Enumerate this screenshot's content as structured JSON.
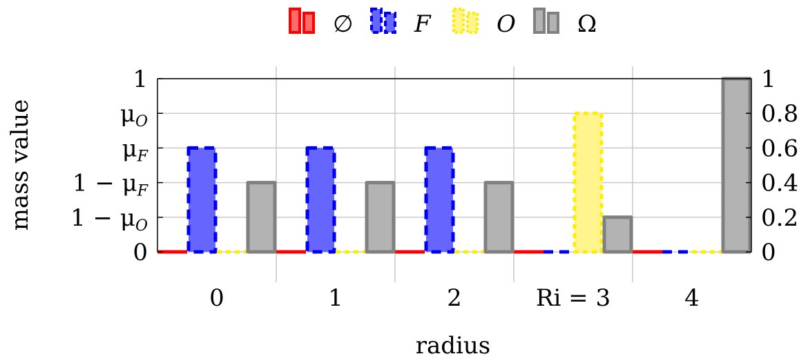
{
  "chart_data": {
    "type": "bar",
    "categories": [
      "0",
      "1",
      "2",
      "Ri = 3",
      "4"
    ],
    "xlabel": "radius",
    "ylabel": "mass value",
    "ylim": [
      0,
      1
    ],
    "grid": true,
    "legend_position": "top",
    "left_ticks": [
      {
        "value": 0,
        "label": "0"
      },
      {
        "value": 0.2,
        "label": "1 − μO"
      },
      {
        "value": 0.4,
        "label": "1 − μF"
      },
      {
        "value": 0.6,
        "label": "μF"
      },
      {
        "value": 0.8,
        "label": "μO"
      },
      {
        "value": 1,
        "label": "1"
      }
    ],
    "right_ticks": [
      {
        "value": 0,
        "label": "0"
      },
      {
        "value": 0.2,
        "label": "0.2"
      },
      {
        "value": 0.4,
        "label": "0.4"
      },
      {
        "value": 0.6,
        "label": "0.6"
      },
      {
        "value": 0.8,
        "label": "0.8"
      },
      {
        "value": 1,
        "label": "1"
      }
    ],
    "series": [
      {
        "name": "∅",
        "values": [
          0,
          0,
          0,
          0,
          0
        ],
        "color": "#ff0000",
        "fill": "#ff6b6b",
        "dash": "none"
      },
      {
        "name": "F",
        "values": [
          0.6,
          0.6,
          0.6,
          0,
          0
        ],
        "color": "#0000ee",
        "fill": "#6666ff",
        "dash": "dashed"
      },
      {
        "name": "O",
        "values": [
          0,
          0,
          0,
          0.8,
          0
        ],
        "color": "#ffee00",
        "fill": "#fff58c",
        "dash": "dotted"
      },
      {
        "name": "Ω",
        "values": [
          0.4,
          0.4,
          0.4,
          0.2,
          1
        ],
        "color": "#808080",
        "fill": "#b3b3b3",
        "dash": "none"
      }
    ]
  }
}
